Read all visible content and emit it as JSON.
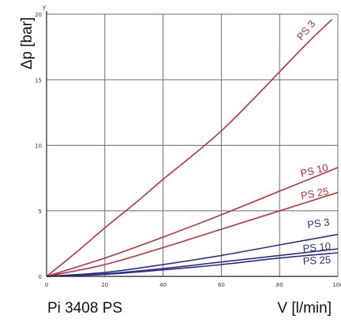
{
  "chart_data": {
    "type": "line",
    "title": "Pi 3408 PS",
    "xlabel": "V [l/min]",
    "ylabel": "Δp [bar]",
    "y_axis_letter": "y",
    "xlim": [
      0,
      100
    ],
    "ylim": [
      0,
      20
    ],
    "x_ticks": [
      0,
      20,
      40,
      60,
      80,
      100
    ],
    "y_ticks": [
      0,
      5,
      10,
      15,
      20
    ],
    "grid": true,
    "series": [
      {
        "name": "PS 3",
        "color": "#b8323a",
        "x": [
          0,
          10,
          20,
          30,
          40,
          50,
          60,
          70,
          80,
          90,
          98
        ],
        "y": [
          0,
          1.8,
          3.7,
          5.5,
          7.4,
          9.2,
          11.1,
          13.3,
          15.6,
          17.9,
          19.6
        ]
      },
      {
        "name": "PS 10",
        "color": "#b8323a",
        "x": [
          0,
          20,
          40,
          60,
          80,
          100
        ],
        "y": [
          0,
          1.4,
          3.0,
          4.7,
          6.5,
          8.3
        ]
      },
      {
        "name": "PS 25",
        "color": "#b8323a",
        "x": [
          0,
          20,
          40,
          60,
          80,
          100
        ],
        "y": [
          0,
          0.9,
          2.2,
          3.6,
          5.0,
          6.4
        ]
      },
      {
        "name": "PS 3",
        "color": "#2a2e8c",
        "x": [
          0,
          20,
          40,
          60,
          80,
          100
        ],
        "y": [
          0,
          0.3,
          0.9,
          1.6,
          2.4,
          3.2
        ]
      },
      {
        "name": "PS 10",
        "color": "#2a2e8c",
        "x": [
          0,
          20,
          40,
          60,
          80,
          100
        ],
        "y": [
          0,
          0.2,
          0.6,
          1.1,
          1.6,
          2.1
        ]
      },
      {
        "name": "PS 25",
        "color": "#2a2e8c",
        "x": [
          0,
          20,
          40,
          60,
          80,
          100
        ],
        "y": [
          0,
          0.15,
          0.5,
          0.9,
          1.4,
          1.8
        ]
      }
    ]
  }
}
